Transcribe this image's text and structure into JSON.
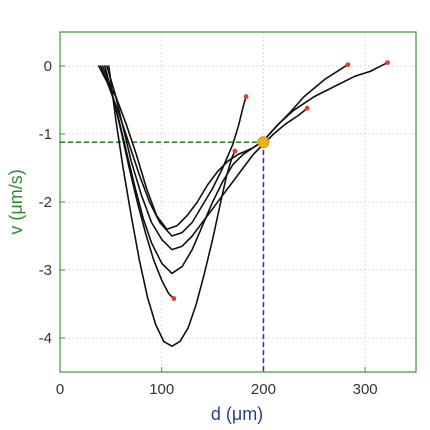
{
  "chart_data": {
    "type": "line",
    "title": "",
    "xlabel": "d (μm)",
    "ylabel": "v (μm/s)",
    "xlim": [
      0,
      350
    ],
    "ylim": [
      -4.5,
      0.5
    ],
    "xticks": [
      0,
      100,
      200,
      300
    ],
    "yticks": [
      0,
      -1,
      -2,
      -3,
      -4
    ],
    "xtick_labels": [
      "0",
      "100",
      "200",
      "300"
    ],
    "ytick_labels": [
      "0",
      "-1",
      "-2",
      "-3",
      "-4"
    ],
    "grid": true,
    "colors": {
      "axes_frame": "#3a9a3a",
      "ylabel": "#2e8b2e",
      "xlabel": "#2c3e8a",
      "trajectory": "#111111",
      "endpoint": "#e53935",
      "highlight_marker": "#f2b01e",
      "h_guide": "#2e8b2e",
      "v_guide": "#2c3e8a"
    },
    "series": [
      {
        "x": [
          38,
          45,
          55,
          65,
          75,
          85,
          95,
          105,
          115,
          125,
          135,
          145,
          155,
          165,
          175,
          183,
          190,
          200,
          215,
          230,
          250,
          270,
          290,
          305,
          322
        ],
        "y": [
          0,
          -0.2,
          -0.45,
          -0.85,
          -1.3,
          -1.8,
          -2.2,
          -2.4,
          -2.35,
          -2.2,
          -2.0,
          -1.75,
          -1.55,
          -1.4,
          -1.3,
          -1.25,
          -1.2,
          -1.1,
          -0.85,
          -0.65,
          -0.45,
          -0.3,
          -0.15,
          -0.08,
          0.05
        ]
      },
      {
        "x": [
          40,
          48,
          58,
          68,
          78,
          88,
          98,
          110,
          120,
          130,
          140,
          150,
          160,
          170,
          176,
          180,
          183
        ],
        "y": [
          0,
          -0.3,
          -0.7,
          -1.15,
          -1.6,
          -2.0,
          -2.3,
          -2.5,
          -2.45,
          -2.3,
          -2.05,
          -1.8,
          -1.5,
          -1.15,
          -0.85,
          -0.6,
          -0.45
        ]
      },
      {
        "x": [
          42,
          50,
          58,
          66,
          74,
          82,
          90,
          100,
          110,
          120,
          130,
          140,
          150,
          160,
          170,
          180,
          190,
          200,
          212,
          225,
          240,
          260,
          283
        ],
        "y": [
          0,
          -0.35,
          -0.8,
          -1.3,
          -1.8,
          -2.25,
          -2.6,
          -2.9,
          -3.05,
          -2.95,
          -2.7,
          -2.35,
          -2.0,
          -1.7,
          -1.45,
          -1.3,
          -1.2,
          -1.1,
          -0.9,
          -0.7,
          -0.45,
          -0.2,
          0.02
        ]
      },
      {
        "x": [
          44,
          52,
          60,
          68,
          76,
          84,
          92,
          100,
          107,
          112
        ],
        "y": [
          0,
          -0.45,
          -0.95,
          -1.5,
          -2.0,
          -2.45,
          -2.85,
          -3.15,
          -3.35,
          -3.42
        ]
      },
      {
        "x": [
          46,
          54,
          62,
          70,
          80,
          90,
          100,
          110,
          120,
          130,
          140,
          150,
          160,
          170,
          180,
          190,
          200,
          210,
          222,
          235,
          243
        ],
        "y": [
          0,
          -0.4,
          -0.9,
          -1.4,
          -1.9,
          -2.3,
          -2.55,
          -2.7,
          -2.65,
          -2.5,
          -2.3,
          -2.1,
          -1.9,
          -1.7,
          -1.5,
          -1.3,
          -1.15,
          -1.0,
          -0.85,
          -0.72,
          -0.62
        ]
      },
      {
        "x": [
          48,
          55,
          62,
          70,
          78,
          86,
          94,
          102,
          110,
          118,
          126,
          134,
          142,
          150,
          158,
          164,
          169,
          172
        ],
        "y": [
          0,
          -0.8,
          -1.5,
          -2.2,
          -2.85,
          -3.4,
          -3.8,
          -4.05,
          -4.12,
          -4.05,
          -3.85,
          -3.5,
          -3.05,
          -2.55,
          -2.0,
          -1.6,
          -1.35,
          -1.25
        ]
      }
    ],
    "endpoints": [
      {
        "x": 322,
        "y": 0.05
      },
      {
        "x": 183,
        "y": -0.45
      },
      {
        "x": 283,
        "y": 0.02
      },
      {
        "x": 112,
        "y": -3.42
      },
      {
        "x": 243,
        "y": -0.62
      },
      {
        "x": 172,
        "y": -1.25
      }
    ],
    "highlight_point": {
      "x": 200,
      "y": -1.12
    },
    "guide_lines": {
      "horizontal_y": -1.12,
      "vertical_x": 200
    }
  }
}
